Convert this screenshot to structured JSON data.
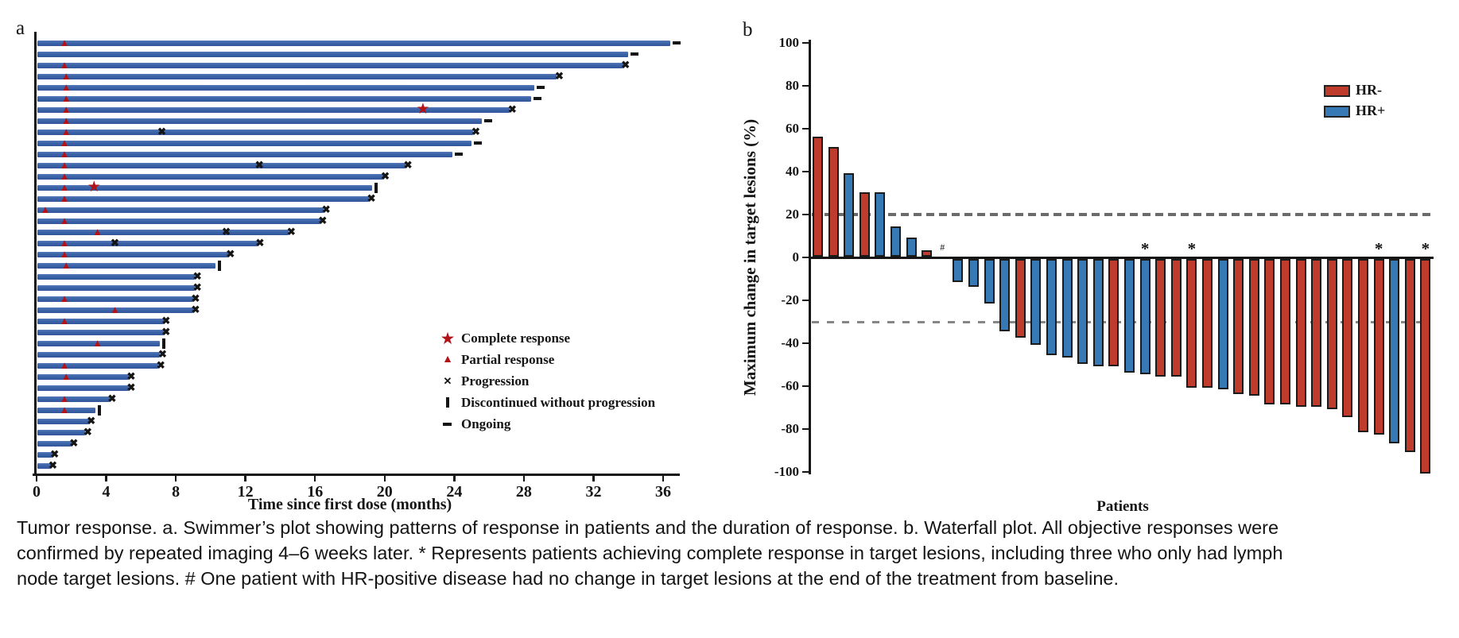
{
  "caption": {
    "line1": "Tumor response. a. Swimmer’s plot showing patterns of response in patients and the duration of response. b. Waterfall plot. All objective responses were",
    "line2": "confirmed by repeated imaging 4–6 weeks later. * Represents patients achieving complete response in target lesions, including three who only had lymph",
    "line3": "node target lesions. # One patient with HR-positive disease had no change in target lesions at the end of the treatment from baseline."
  },
  "panel_a": {
    "label": "a",
    "x_axis_title": "Time since first dose (months)",
    "x_ticks": [
      0,
      4,
      8,
      12,
      16,
      20,
      24,
      28,
      32,
      36
    ],
    "legend": [
      {
        "symbol": "star",
        "label": "Complete response"
      },
      {
        "symbol": "triangle",
        "label": "Partial response"
      },
      {
        "symbol": "x",
        "label": "Progression"
      },
      {
        "symbol": "bar",
        "label": "Discontinued without progression"
      },
      {
        "symbol": "dash",
        "label": "Ongoing"
      }
    ],
    "colors": {
      "bar_blue": "#3A62A8",
      "response_red": "#B31217",
      "event_black": "#151515"
    }
  },
  "panel_b": {
    "label": "b",
    "y_axis_title": "Maximum change in target lesions (%)",
    "x_axis_title": "Patients",
    "y_ticks": [
      100,
      80,
      60,
      40,
      20,
      0,
      -20,
      -40,
      -60,
      -80,
      -100
    ],
    "legend": [
      {
        "group": "HR-",
        "color": "#BF3B2B"
      },
      {
        "group": "HR+",
        "color": "#3779B5"
      }
    ],
    "colors": {
      "HR-": "#BF3B2B",
      "HR+": "#3779B5",
      "dashed_gray": "#6b6b6b"
    }
  },
  "chart_data": [
    {
      "type": "bar",
      "subtype": "swimmer",
      "xlabel": "Time since first dose (months)",
      "xlim": [
        0,
        37
      ],
      "marker_legend": [
        "Complete response",
        "Partial response",
        "Progression",
        "Discontinued without progression",
        "Ongoing"
      ],
      "patients": [
        {
          "duration": 36.4,
          "end": "ongoing",
          "markers": [
            {
              "type": "partial-response",
              "month": 1.6
            }
          ]
        },
        {
          "duration": 34.0,
          "end": "ongoing",
          "markers": []
        },
        {
          "duration": 33.7,
          "end": "progression",
          "markers": [
            {
              "type": "partial-response",
              "month": 1.6
            }
          ]
        },
        {
          "duration": 29.9,
          "end": "progression",
          "markers": [
            {
              "type": "partial-response",
              "month": 1.7
            }
          ]
        },
        {
          "duration": 28.6,
          "end": "ongoing",
          "markers": [
            {
              "type": "partial-response",
              "month": 1.7
            }
          ]
        },
        {
          "duration": 28.4,
          "end": "ongoing",
          "markers": [
            {
              "type": "partial-response",
              "month": 1.7
            }
          ]
        },
        {
          "duration": 27.2,
          "end": "progression",
          "markers": [
            {
              "type": "partial-response",
              "month": 1.7
            },
            {
              "type": "complete-response",
              "month": 22.2
            }
          ]
        },
        {
          "duration": 25.6,
          "end": "ongoing",
          "markers": [
            {
              "type": "partial-response",
              "month": 1.7
            }
          ]
        },
        {
          "duration": 25.1,
          "end": "progression",
          "markers": [
            {
              "type": "partial-response",
              "month": 1.7
            },
            {
              "type": "progression",
              "month": 7.2
            }
          ]
        },
        {
          "duration": 25.0,
          "end": "ongoing",
          "markers": [
            {
              "type": "partial-response",
              "month": 1.6
            }
          ]
        },
        {
          "duration": 23.9,
          "end": "ongoing",
          "markers": [
            {
              "type": "partial-response",
              "month": 1.6
            }
          ]
        },
        {
          "duration": 21.2,
          "end": "progression",
          "markers": [
            {
              "type": "partial-response",
              "month": 1.6
            },
            {
              "type": "progression",
              "month": 12.8
            }
          ]
        },
        {
          "duration": 19.9,
          "end": "progression",
          "markers": [
            {
              "type": "partial-response",
              "month": 1.6
            }
          ]
        },
        {
          "duration": 19.3,
          "end": "discontinued",
          "markers": [
            {
              "type": "partial-response",
              "month": 1.6
            },
            {
              "type": "complete-response",
              "month": 3.3
            }
          ]
        },
        {
          "duration": 19.1,
          "end": "progression",
          "markers": [
            {
              "type": "partial-response",
              "month": 1.6
            }
          ]
        },
        {
          "duration": 16.5,
          "end": "progression",
          "markers": [
            {
              "type": "partial-response",
              "month": 0.5
            }
          ]
        },
        {
          "duration": 16.3,
          "end": "progression",
          "markers": [
            {
              "type": "partial-response",
              "month": 1.6
            }
          ]
        },
        {
          "duration": 14.5,
          "end": "progression",
          "markers": [
            {
              "type": "partial-response",
              "month": 3.5
            },
            {
              "type": "progression",
              "month": 10.9
            }
          ]
        },
        {
          "duration": 12.7,
          "end": "progression",
          "markers": [
            {
              "type": "partial-response",
              "month": 1.6
            },
            {
              "type": "progression",
              "month": 4.5
            }
          ]
        },
        {
          "duration": 11.0,
          "end": "progression",
          "markers": [
            {
              "type": "partial-response",
              "month": 1.6
            }
          ]
        },
        {
          "duration": 10.3,
          "end": "discontinued",
          "markers": [
            {
              "type": "partial-response",
              "month": 1.7
            }
          ]
        },
        {
          "duration": 9.1,
          "end": "progression",
          "markers": []
        },
        {
          "duration": 9.1,
          "end": "progression",
          "markers": []
        },
        {
          "duration": 9.0,
          "end": "progression",
          "markers": [
            {
              "type": "partial-response",
              "month": 1.6
            }
          ]
        },
        {
          "duration": 9.0,
          "end": "progression",
          "markers": [
            {
              "type": "partial-response",
              "month": 4.5
            }
          ]
        },
        {
          "duration": 7.3,
          "end": "progression",
          "markers": [
            {
              "type": "partial-response",
              "month": 1.6
            }
          ]
        },
        {
          "duration": 7.3,
          "end": "progression",
          "markers": []
        },
        {
          "duration": 7.1,
          "end": "discontinued",
          "markers": [
            {
              "type": "partial-response",
              "month": 3.5
            }
          ]
        },
        {
          "duration": 7.1,
          "end": "progression",
          "markers": []
        },
        {
          "duration": 7.0,
          "end": "progression",
          "markers": [
            {
              "type": "partial-response",
              "month": 1.6
            }
          ]
        },
        {
          "duration": 5.3,
          "end": "progression",
          "markers": [
            {
              "type": "partial-response",
              "month": 1.7
            }
          ]
        },
        {
          "duration": 5.3,
          "end": "progression",
          "markers": []
        },
        {
          "duration": 4.2,
          "end": "progression",
          "markers": [
            {
              "type": "partial-response",
              "month": 1.6
            }
          ]
        },
        {
          "duration": 3.4,
          "end": "discontinued",
          "markers": [
            {
              "type": "partial-response",
              "month": 1.6
            }
          ]
        },
        {
          "duration": 3.0,
          "end": "progression",
          "markers": []
        },
        {
          "duration": 2.8,
          "end": "progression",
          "markers": []
        },
        {
          "duration": 2.0,
          "end": "progression",
          "markers": []
        },
        {
          "duration": 0.9,
          "end": "progression",
          "markers": []
        },
        {
          "duration": 0.8,
          "end": "progression",
          "markers": []
        }
      ]
    },
    {
      "type": "bar",
      "subtype": "waterfall",
      "ylabel": "Maximum change in target lesions (%)",
      "xlabel": "Patients",
      "ylim": [
        -100,
        100
      ],
      "reference_lines": [
        20,
        -30
      ],
      "legend": [
        "HR-",
        "HR+"
      ],
      "bars": [
        {
          "value": 56,
          "group": "HR-",
          "mark": null
        },
        {
          "value": 51,
          "group": "HR-",
          "mark": null
        },
        {
          "value": 39,
          "group": "HR+",
          "mark": null
        },
        {
          "value": 30,
          "group": "HR-",
          "mark": null
        },
        {
          "value": 30,
          "group": "HR+",
          "mark": null
        },
        {
          "value": 14,
          "group": "HR+",
          "mark": null
        },
        {
          "value": 9,
          "group": "HR+",
          "mark": null
        },
        {
          "value": 3,
          "group": "HR-",
          "mark": null
        },
        {
          "value": 0,
          "group": "HR+",
          "mark": "#"
        },
        {
          "value": -11,
          "group": "HR+",
          "mark": null
        },
        {
          "value": -13,
          "group": "HR+",
          "mark": null
        },
        {
          "value": -21,
          "group": "HR+",
          "mark": null
        },
        {
          "value": -34,
          "group": "HR+",
          "mark": null
        },
        {
          "value": -37,
          "group": "HR-",
          "mark": null
        },
        {
          "value": -40,
          "group": "HR+",
          "mark": null
        },
        {
          "value": -45,
          "group": "HR+",
          "mark": null
        },
        {
          "value": -46,
          "group": "HR+",
          "mark": null
        },
        {
          "value": -49,
          "group": "HR+",
          "mark": null
        },
        {
          "value": -50,
          "group": "HR+",
          "mark": null
        },
        {
          "value": -50,
          "group": "HR-",
          "mark": null
        },
        {
          "value": -53,
          "group": "HR+",
          "mark": null
        },
        {
          "value": -54,
          "group": "HR+",
          "mark": "*"
        },
        {
          "value": -55,
          "group": "HR-",
          "mark": null
        },
        {
          "value": -55,
          "group": "HR-",
          "mark": null
        },
        {
          "value": -60,
          "group": "HR-",
          "mark": "*"
        },
        {
          "value": -60,
          "group": "HR-",
          "mark": null
        },
        {
          "value": -61,
          "group": "HR+",
          "mark": null
        },
        {
          "value": -63,
          "group": "HR-",
          "mark": null
        },
        {
          "value": -64,
          "group": "HR-",
          "mark": null
        },
        {
          "value": -68,
          "group": "HR-",
          "mark": null
        },
        {
          "value": -68,
          "group": "HR-",
          "mark": null
        },
        {
          "value": -69,
          "group": "HR-",
          "mark": null
        },
        {
          "value": -69,
          "group": "HR-",
          "mark": null
        },
        {
          "value": -70,
          "group": "HR-",
          "mark": null
        },
        {
          "value": -74,
          "group": "HR-",
          "mark": null
        },
        {
          "value": -81,
          "group": "HR-",
          "mark": null
        },
        {
          "value": -82,
          "group": "HR-",
          "mark": "*"
        },
        {
          "value": -86,
          "group": "HR+",
          "mark": null
        },
        {
          "value": -90,
          "group": "HR-",
          "mark": null
        },
        {
          "value": -100,
          "group": "HR-",
          "mark": "*"
        }
      ]
    }
  ]
}
